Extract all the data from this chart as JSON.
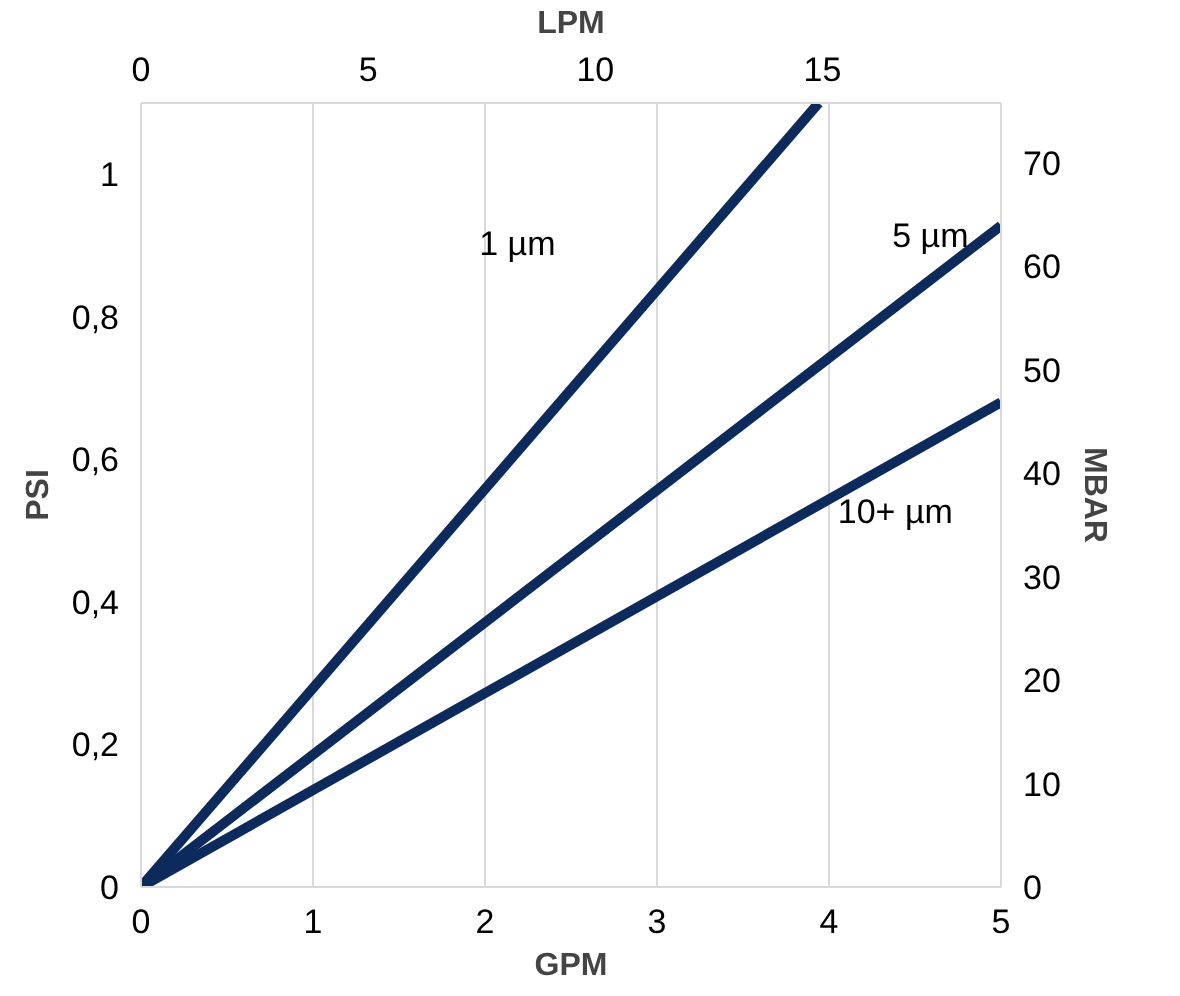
{
  "chart_data": {
    "type": "line",
    "xlabel": "GPM",
    "ylabel": "PSI",
    "y2label": "MBAR",
    "x2label": "LPM",
    "xlim": [
      0,
      5
    ],
    "xticks": [
      0,
      1,
      2,
      3,
      4,
      5
    ],
    "ylim": [
      0,
      1.1
    ],
    "yticks": [
      0,
      {
        "value": 0.2,
        "label": "0,2"
      },
      {
        "value": 0.4,
        "label": "0,4"
      },
      {
        "value": 0.6,
        "label": "0,6"
      },
      {
        "value": 0.8,
        "label": "0,8"
      },
      1
    ],
    "y2lim": [
      0,
      75.8
    ],
    "y2ticks": [
      0,
      10,
      20,
      30,
      40,
      50,
      60,
      70
    ],
    "x2lim": [
      0,
      18.93
    ],
    "x2ticks": [
      0,
      5,
      10,
      15
    ],
    "grid": "x",
    "legend": false,
    "series": [
      {
        "name": "1 µm",
        "color": "#0d2a5c",
        "x": [
          0,
          3.94
        ],
        "values": [
          0,
          1.1
        ]
      },
      {
        "name": "5 µm",
        "color": "#0d2a5c",
        "x": [
          0,
          5
        ],
        "values": [
          0,
          0.928
        ]
      },
      {
        "name": "10+ µm",
        "color": "#0d2a5c",
        "x": [
          0,
          5
        ],
        "values": [
          0,
          0.68
        ]
      }
    ]
  }
}
